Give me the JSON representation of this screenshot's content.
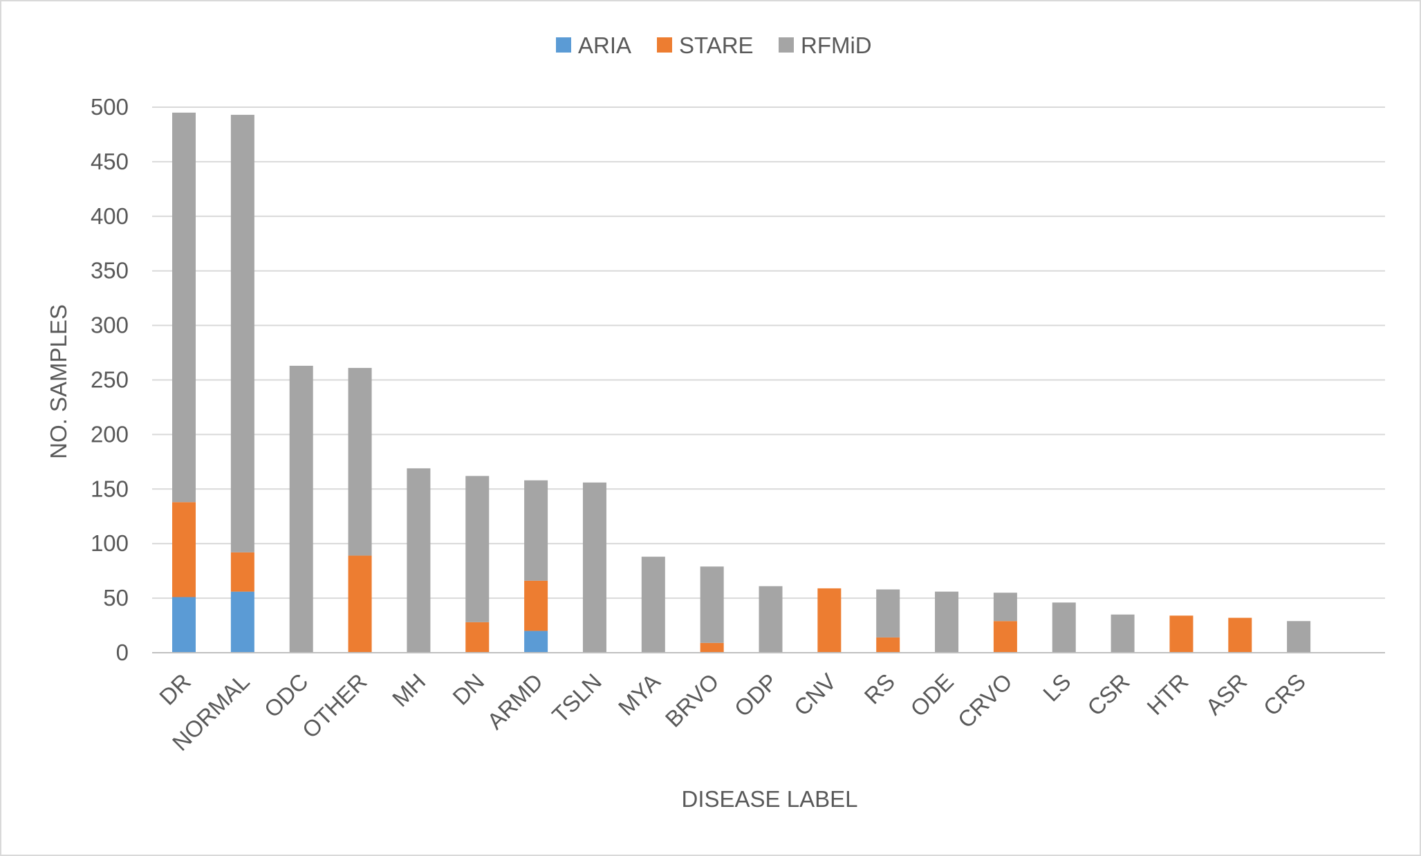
{
  "chart_data": {
    "type": "bar",
    "stacked": true,
    "title": "",
    "xlabel": "DISEASE LABEL",
    "ylabel": "NO. SAMPLES",
    "ylim": [
      0,
      500
    ],
    "yticks": [
      0,
      50,
      100,
      150,
      200,
      250,
      300,
      350,
      400,
      450,
      500
    ],
    "grid": true,
    "legend_position": "top-center",
    "categories": [
      "DR",
      "NORMAL",
      "ODC",
      "OTHER",
      "MH",
      "DN",
      "ARMD",
      "TSLN",
      "MYA",
      "BRVO",
      "ODP",
      "CNV",
      "RS",
      "ODE",
      "CRVO",
      "LS",
      "CSR",
      "HTR",
      "ASR",
      "CRS"
    ],
    "series": [
      {
        "name": "ARIA",
        "color": "#5b9bd5",
        "values": [
          51,
          56,
          0,
          0,
          0,
          0,
          20,
          0,
          0,
          0,
          0,
          0,
          0,
          0,
          0,
          0,
          0,
          0,
          0,
          0
        ]
      },
      {
        "name": "STARE",
        "color": "#ed7d31",
        "values": [
          87,
          36,
          0,
          89,
          0,
          28,
          46,
          0,
          0,
          9,
          0,
          59,
          14,
          0,
          29,
          0,
          0,
          34,
          32,
          0
        ]
      },
      {
        "name": "RFMiD",
        "color": "#a5a5a5",
        "values": [
          357,
          401,
          263,
          172,
          169,
          134,
          92,
          156,
          88,
          70,
          61,
          0,
          44,
          56,
          26,
          46,
          35,
          0,
          0,
          29
        ]
      }
    ]
  }
}
